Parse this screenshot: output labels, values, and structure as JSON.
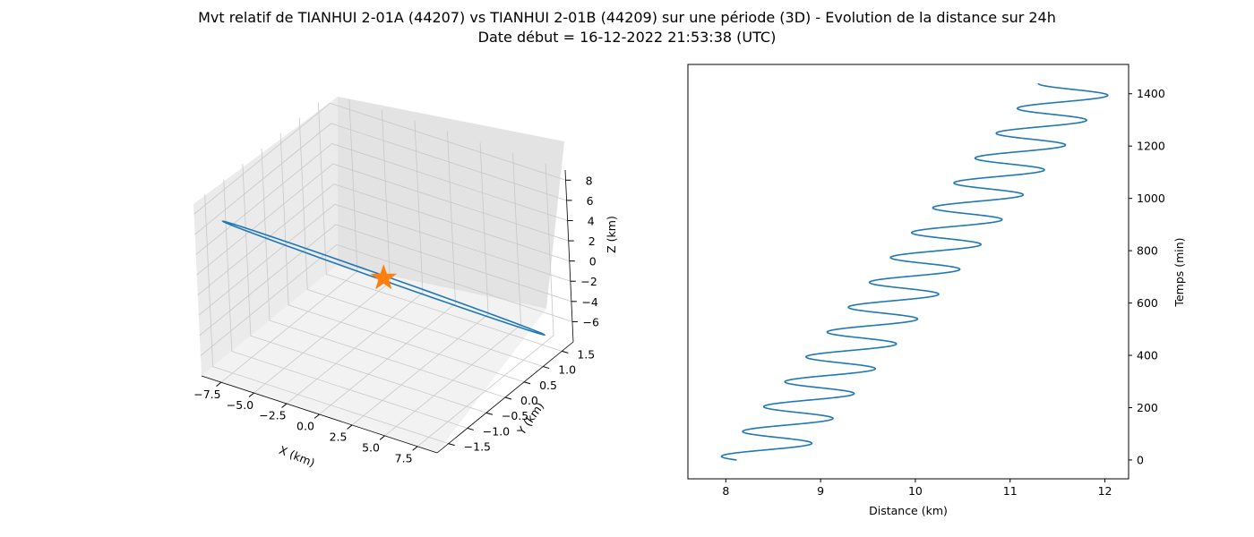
{
  "figure": {
    "title_line1": "Mvt relatif de TIANHUI 2-01A (44207) vs TIANHUI 2-01B (44209) sur une période (3D) - Evolution de la distance sur 24h",
    "title_line2": "Date début = 16-12-2022 21:53:38 (UTC)"
  },
  "chart_data": [
    {
      "type": "line",
      "projection": "3d",
      "xlabel": "X (km)",
      "ylabel": "Y (km)",
      "zlabel": "Z (km)",
      "x_ticks": [
        "−7.5",
        "−5.0",
        "−2.5",
        "0.0",
        "2.5",
        "5.0",
        "7.5"
      ],
      "y_ticks": [
        "−1.5",
        "−1.0",
        "−0.5",
        "0.0",
        "0.5",
        "1.0",
        "1.5"
      ],
      "z_ticks": [
        "−6",
        "−4",
        "−2",
        "0",
        "2",
        "4",
        "6",
        "8"
      ],
      "xlim": [
        -9,
        9
      ],
      "ylim": [
        -1.8,
        1.8
      ],
      "zlim": [
        -8,
        9
      ],
      "grid": true,
      "series": [
        {
          "color": "#1f77b4",
          "description": "closed relative-motion loop (thin ellipse)",
          "endpoint_a": {
            "x": -8,
            "y": -1.4,
            "z": 6.5
          },
          "endpoint_b": {
            "x": 8,
            "y": 1.4,
            "z": -6.5
          }
        }
      ],
      "marker": {
        "shape": "star",
        "color": "#ff7f0e",
        "x": 0,
        "y": 0,
        "z": 0
      }
    },
    {
      "type": "line",
      "xlabel": "Distance (km)",
      "ylabel": "Temps (min)",
      "y_axis_side": "right",
      "x_ticks": [
        "8",
        "9",
        "10",
        "11",
        "12"
      ],
      "y_ticks": [
        "0",
        "200",
        "400",
        "600",
        "800",
        "1000",
        "1200",
        "1400"
      ],
      "xlim": [
        7.6,
        12.25
      ],
      "ylim": [
        -72,
        1512
      ],
      "grid": false,
      "series": [
        {
          "color": "#1f77b4",
          "t_start_min": 0,
          "t_end_min": 1440,
          "period_min": 95,
          "center_start_km": 8.34,
          "center_end_km": 11.72,
          "amplitude_km": 0.42,
          "phase_rad": 2.14
        }
      ]
    }
  ]
}
